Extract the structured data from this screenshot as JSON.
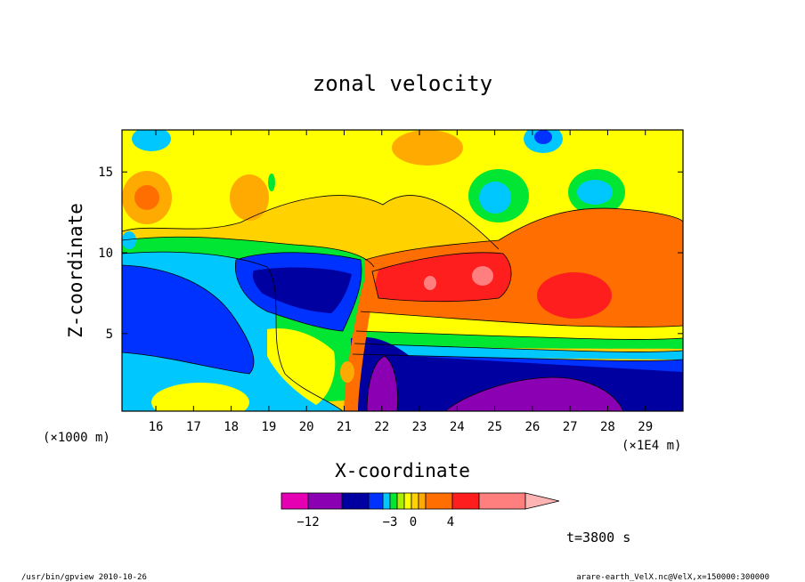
{
  "chart_data": {
    "type": "heatmap",
    "title": "zonal velocity",
    "xlabel": "X-coordinate",
    "ylabel": "Z-coordinate",
    "x_unit_left": "(×1000 m)",
    "x_unit_right": "(×1E4 m)",
    "x_ticks": [
      16,
      17,
      18,
      19,
      20,
      21,
      22,
      23,
      24,
      25,
      26,
      27,
      28,
      29
    ],
    "y_ticks": [
      5,
      10,
      15
    ],
    "xlim": [
      15.1,
      30.0
    ],
    "ylim": [
      0.2,
      17.6
    ],
    "time_label": "t=3800 s",
    "colorbar": {
      "colors": [
        "#e600b4",
        "#8c00b4",
        "#0000a0",
        "#0032ff",
        "#00c8ff",
        "#00e632",
        "#aaee00",
        "#ffff00",
        "#ffd200",
        "#ffaa00",
        "#ff6e00",
        "#ff1e1e",
        "#ff7f7f",
        "#ffb4b4"
      ],
      "tick_labels": [
        {
          "value": -12,
          "label": "−12"
        },
        {
          "value": -3,
          "label": "−3"
        },
        {
          "value": 0,
          "label": "0"
        },
        {
          "value": 4,
          "label": "4"
        }
      ]
    },
    "regions": [
      {
        "name": "background-yellow",
        "color": "#ffd200"
      },
      {
        "name": "lower-left-blue",
        "color": "#0032ff"
      },
      {
        "name": "left-green-band",
        "color": "#00e632"
      },
      {
        "name": "central-dark-blue",
        "color": "#0000a0"
      },
      {
        "name": "central-red",
        "color": "#ff1e1e"
      },
      {
        "name": "right-orange",
        "color": "#ff6e00"
      },
      {
        "name": "lower-right-purple",
        "color": "#8c00b4"
      }
    ]
  },
  "footer": {
    "program": "/usr/bin/gpview  2010-10-26",
    "source": "arare-earth_VelX.nc@VelX,x=150000:300000"
  }
}
